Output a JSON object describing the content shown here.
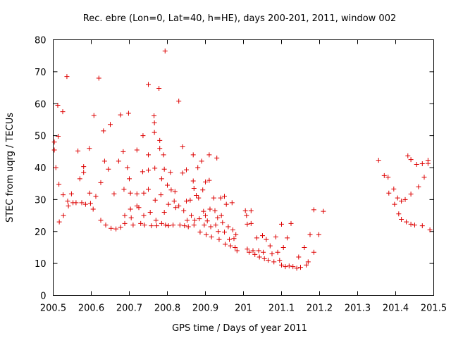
{
  "chart_data": {
    "type": "scatter",
    "title": "Rec. ebre (Lon=0, Lat=40, h=HE), days 200-201, 2011, window 002",
    "xlabel": "GPS time / Days of year 2011",
    "ylabel": "STEC from uqrg / TECUs",
    "xlim": [
      200.5,
      201.5
    ],
    "ylim": [
      0,
      80
    ],
    "xticks": [
      200.5,
      200.6,
      200.7,
      200.8,
      200.9,
      201,
      201.1,
      201.2,
      201.3,
      201.4,
      201.5
    ],
    "xtick_labels": [
      "200.5",
      "200.6",
      "200.7",
      "200.8",
      "200.9",
      "201",
      "201.1",
      "201.2",
      "201.3",
      "201.4",
      "201.5"
    ],
    "yticks": [
      0,
      10,
      20,
      30,
      40,
      50,
      60,
      70,
      80
    ],
    "ytick_labels": [
      "0",
      "10",
      "20",
      "30",
      "40",
      "50",
      "60",
      "70",
      "80"
    ],
    "marker": "+",
    "color": "#dd0000",
    "grid": false,
    "legend": "none",
    "points": [
      [
        200.503,
        48
      ],
      [
        200.503,
        45.5
      ],
      [
        200.507,
        40
      ],
      [
        200.512,
        59.5
      ],
      [
        200.513,
        49.8
      ],
      [
        200.515,
        34.8
      ],
      [
        200.516,
        23
      ],
      [
        200.525,
        57.5
      ],
      [
        200.526,
        31.5
      ],
      [
        200.527,
        25
      ],
      [
        200.536,
        68.5
      ],
      [
        200.538,
        29.5
      ],
      [
        200.54,
        28
      ],
      [
        200.548,
        31.8
      ],
      [
        200.552,
        29
      ],
      [
        200.56,
        29
      ],
      [
        200.565,
        45.2
      ],
      [
        200.57,
        36.5
      ],
      [
        200.575,
        29
      ],
      [
        200.58,
        38.5
      ],
      [
        200.58,
        40.3
      ],
      [
        200.585,
        28.5
      ],
      [
        200.595,
        46
      ],
      [
        200.596,
        32
      ],
      [
        200.598,
        28.8
      ],
      [
        200.605,
        27
      ],
      [
        200.607,
        56.3
      ],
      [
        200.612,
        31
      ],
      [
        200.62,
        68
      ],
      [
        200.625,
        35.3
      ],
      [
        200.625,
        23.5
      ],
      [
        200.632,
        51.5
      ],
      [
        200.635,
        42
      ],
      [
        200.638,
        22
      ],
      [
        200.645,
        39.5
      ],
      [
        200.65,
        53.5
      ],
      [
        200.652,
        21
      ],
      [
        200.66,
        31.8
      ],
      [
        200.665,
        20.8
      ],
      [
        200.672,
        42
      ],
      [
        200.677,
        56.5
      ],
      [
        200.677,
        21.3
      ],
      [
        200.684,
        45
      ],
      [
        200.686,
        33.2
      ],
      [
        200.688,
        25
      ],
      [
        200.688,
        22.5
      ],
      [
        200.695,
        40
      ],
      [
        200.698,
        57
      ],
      [
        200.7,
        36.5
      ],
      [
        200.703,
        32
      ],
      [
        200.703,
        27
      ],
      [
        200.705,
        24.3
      ],
      [
        200.71,
        22
      ],
      [
        200.72,
        45.5
      ],
      [
        200.72,
        31.8
      ],
      [
        200.72,
        28
      ],
      [
        200.725,
        27.5
      ],
      [
        200.73,
        22.5
      ],
      [
        200.735,
        38.7
      ],
      [
        200.736,
        50
      ],
      [
        200.738,
        32
      ],
      [
        200.738,
        25
      ],
      [
        200.74,
        22
      ],
      [
        200.75,
        66
      ],
      [
        200.75,
        44
      ],
      [
        200.75,
        39.2
      ],
      [
        200.75,
        33.2
      ],
      [
        200.755,
        26
      ],
      [
        200.758,
        21.8
      ],
      [
        200.765,
        56.2
      ],
      [
        200.766,
        54
      ],
      [
        200.766,
        51
      ],
      [
        200.767,
        39.8
      ],
      [
        200.768,
        29.8
      ],
      [
        200.77,
        23.5
      ],
      [
        200.772,
        21.8
      ],
      [
        200.778,
        64.8
      ],
      [
        200.78,
        48.5
      ],
      [
        200.78,
        46
      ],
      [
        200.783,
        31.5
      ],
      [
        200.785,
        36.5
      ],
      [
        200.785,
        22.5
      ],
      [
        200.79,
        44
      ],
      [
        200.792,
        39.5
      ],
      [
        200.792,
        26
      ],
      [
        200.794,
        76.5
      ],
      [
        200.795,
        22
      ],
      [
        200.8,
        34.5
      ],
      [
        200.803,
        28.5
      ],
      [
        200.803,
        21.8
      ],
      [
        200.808,
        38.5
      ],
      [
        200.81,
        33
      ],
      [
        200.815,
        22
      ],
      [
        200.818,
        29.5
      ],
      [
        200.82,
        32.5
      ],
      [
        200.822,
        27.5
      ],
      [
        200.83,
        60.8
      ],
      [
        200.83,
        28
      ],
      [
        200.833,
        22
      ],
      [
        200.84,
        46.5
      ],
      [
        200.84,
        38.3
      ],
      [
        200.843,
        26.5
      ],
      [
        200.845,
        21.8
      ],
      [
        200.85,
        39.3
      ],
      [
        200.85,
        29.5
      ],
      [
        200.852,
        23.5
      ],
      [
        200.855,
        21.5
      ],
      [
        200.86,
        29.8
      ],
      [
        200.863,
        25
      ],
      [
        200.868,
        44
      ],
      [
        200.868,
        35.8
      ],
      [
        200.87,
        33.5
      ],
      [
        200.87,
        22
      ],
      [
        200.872,
        23.5
      ],
      [
        200.876,
        31.3
      ],
      [
        200.88,
        40
      ],
      [
        200.882,
        30.5
      ],
      [
        200.884,
        24
      ],
      [
        200.886,
        19.8
      ],
      [
        200.89,
        42
      ],
      [
        200.893,
        33
      ],
      [
        200.895,
        26.3
      ],
      [
        200.897,
        22
      ],
      [
        200.9,
        35.5
      ],
      [
        200.9,
        25
      ],
      [
        200.902,
        19
      ],
      [
        200.905,
        23.3
      ],
      [
        200.91,
        44
      ],
      [
        200.91,
        36
      ],
      [
        200.912,
        27
      ],
      [
        200.914,
        21.5
      ],
      [
        200.916,
        18.3
      ],
      [
        200.922,
        30.5
      ],
      [
        200.925,
        26.5
      ],
      [
        200.927,
        22
      ],
      [
        200.93,
        43
      ],
      [
        200.932,
        24.3
      ],
      [
        200.934,
        20
      ],
      [
        200.936,
        17.5
      ],
      [
        200.94,
        30.5
      ],
      [
        200.942,
        25
      ],
      [
        200.945,
        22.8
      ],
      [
        200.95,
        31
      ],
      [
        200.95,
        19.8
      ],
      [
        200.952,
        16
      ],
      [
        200.955,
        28.5
      ],
      [
        200.96,
        21.5
      ],
      [
        200.963,
        17.5
      ],
      [
        200.966,
        15.5
      ],
      [
        200.97,
        29
      ],
      [
        200.972,
        20.5
      ],
      [
        200.975,
        17.8
      ],
      [
        200.978,
        15
      ],
      [
        200.98,
        19
      ],
      [
        200.983,
        14
      ],
      [
        201.005,
        26.5
      ],
      [
        201.008,
        25
      ],
      [
        201.01,
        22.3
      ],
      [
        201.01,
        14.5
      ],
      [
        201.015,
        13.5
      ],
      [
        201.02,
        26.5
      ],
      [
        201.02,
        22.5
      ],
      [
        201.025,
        14
      ],
      [
        201.03,
        12.8
      ],
      [
        201.035,
        18
      ],
      [
        201.04,
        14
      ],
      [
        201.042,
        12
      ],
      [
        201.05,
        18.7
      ],
      [
        201.052,
        13.5
      ],
      [
        201.055,
        11.5
      ],
      [
        201.06,
        17.5
      ],
      [
        201.065,
        11
      ],
      [
        201.07,
        15.5
      ],
      [
        201.075,
        13
      ],
      [
        201.08,
        10.5
      ],
      [
        201.085,
        18.3
      ],
      [
        201.09,
        13.5
      ],
      [
        201.095,
        11
      ],
      [
        201.1,
        9.5
      ],
      [
        201.1,
        22.3
      ],
      [
        201.105,
        15
      ],
      [
        201.11,
        9
      ],
      [
        201.115,
        18
      ],
      [
        201.12,
        9.2
      ],
      [
        201.125,
        22.5
      ],
      [
        201.13,
        9
      ],
      [
        201.14,
        8.5
      ],
      [
        201.145,
        12
      ],
      [
        201.15,
        8.8
      ],
      [
        201.16,
        15
      ],
      [
        201.165,
        9.5
      ],
      [
        201.17,
        10.5
      ],
      [
        201.175,
        19
      ],
      [
        201.185,
        26.8
      ],
      [
        201.185,
        13.5
      ],
      [
        201.198,
        19
      ],
      [
        201.21,
        26.3
      ],
      [
        201.355,
        42.3
      ],
      [
        201.37,
        37.5
      ],
      [
        201.38,
        37
      ],
      [
        201.382,
        32
      ],
      [
        201.395,
        33.3
      ],
      [
        201.397,
        28.5
      ],
      [
        201.405,
        30.5
      ],
      [
        201.408,
        25.5
      ],
      [
        201.415,
        29.5
      ],
      [
        201.415,
        23.8
      ],
      [
        201.425,
        30
      ],
      [
        201.428,
        23
      ],
      [
        201.432,
        43.7
      ],
      [
        201.44,
        42.5
      ],
      [
        201.44,
        31.7
      ],
      [
        201.44,
        22.3
      ],
      [
        201.45,
        22
      ],
      [
        201.455,
        41
      ],
      [
        201.46,
        34
      ],
      [
        201.47,
        41.2
      ],
      [
        201.47,
        21.8
      ],
      [
        201.475,
        37
      ],
      [
        201.485,
        41.3
      ],
      [
        201.485,
        42.3
      ],
      [
        201.49,
        20.5
      ]
    ]
  }
}
